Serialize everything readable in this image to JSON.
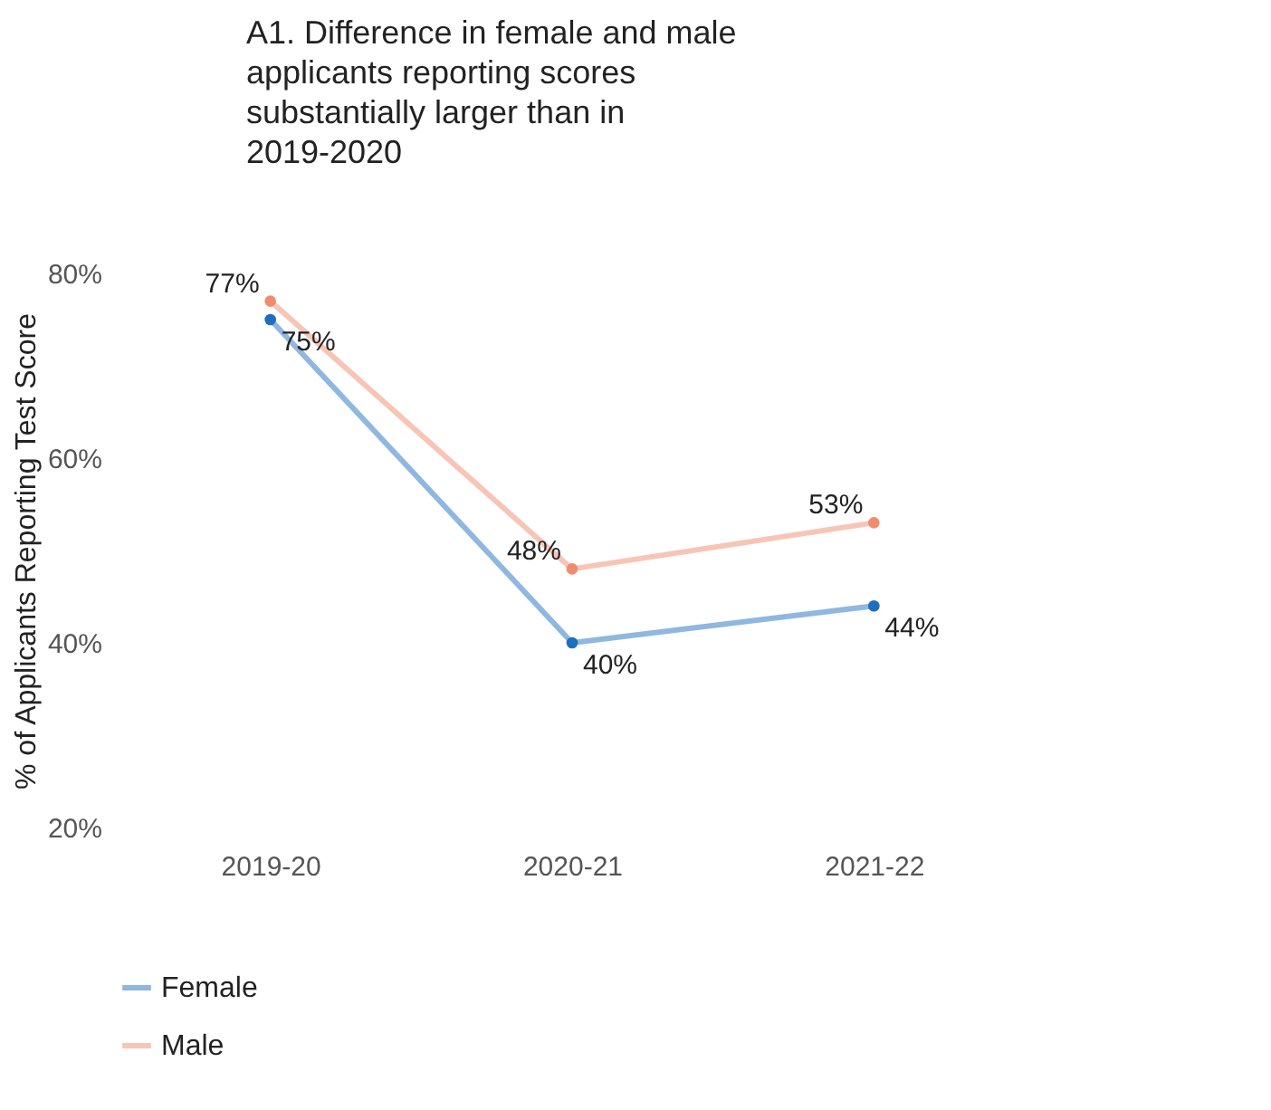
{
  "chart_data": {
    "type": "line",
    "title": "A1. Difference in female and male applicants reporting scores substantially larger than in 2019-2020",
    "ylabel": "% of Applicants Reporting Test Score",
    "categories": [
      "2019-20",
      "2020-21",
      "2021-22"
    ],
    "series": [
      {
        "name": "Female",
        "color": "#1f6fbf",
        "values": [
          75,
          40,
          44
        ],
        "value_labels": [
          "75%",
          "40%",
          "44%"
        ]
      },
      {
        "name": "Male",
        "color": "#f08c6e",
        "values": [
          77,
          48,
          53
        ],
        "value_labels": [
          "77%",
          "48%",
          "53%"
        ]
      }
    ],
    "ylim": [
      20,
      80
    ],
    "yticks": [
      {
        "value": 20,
        "label": "20%"
      },
      {
        "value": 40,
        "label": "40%"
      },
      {
        "value": 60,
        "label": "60%"
      },
      {
        "value": 80,
        "label": "80%"
      }
    ],
    "marker": "circle",
    "legend": "bottom"
  }
}
